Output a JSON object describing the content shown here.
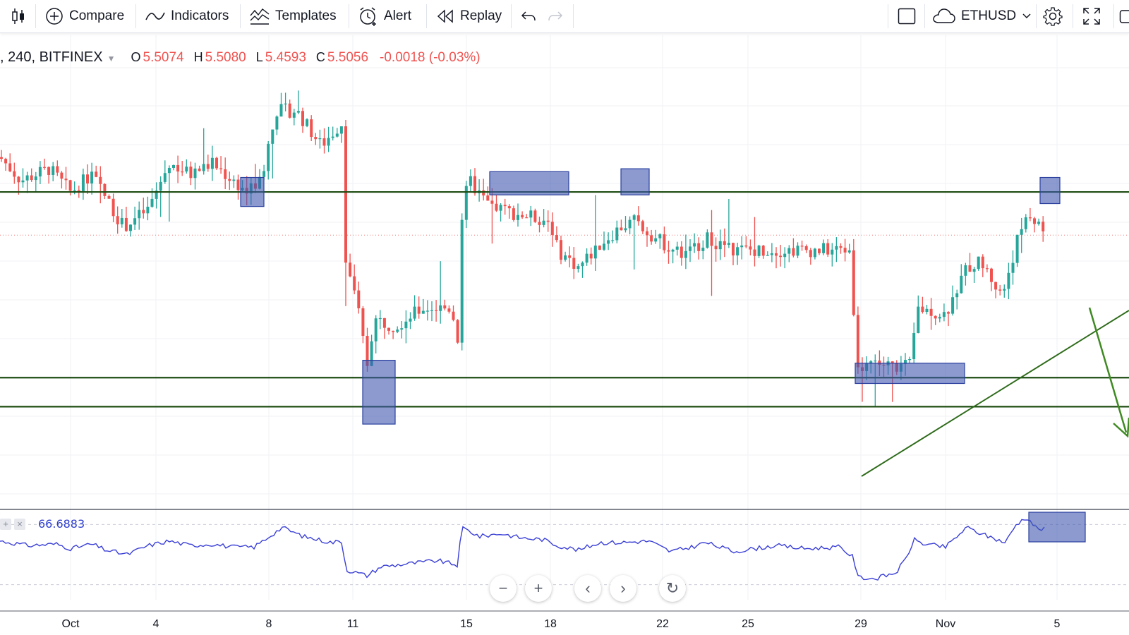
{
  "toolbar": {
    "compare": "Compare",
    "indicators": "Indicators",
    "templates": "Templates",
    "alert": "Alert",
    "replay": "Replay",
    "symbol": "ETHUSD"
  },
  "legend": {
    "symbol": ", 240, BITFINEX",
    "o_label": "O",
    "o": "5.5074",
    "h_label": "H",
    "h": "5.5080",
    "l_label": "L",
    "l": "5.4593",
    "c_label": "C",
    "c": "5.5056",
    "change": "-0.0018 (-0.03%)"
  },
  "rsi": {
    "value": "66.6883"
  },
  "colors": {
    "up": "#26a69a",
    "down": "#ef5350",
    "rsi": "#3a3fd6",
    "level": "#1e4d12",
    "box": "#3f56b0"
  },
  "chart_data": {
    "type": "candlestick",
    "symbol": "BITFINEX 240",
    "x_tick_labels": [
      "Oct",
      "4",
      "8",
      "11",
      "15",
      "18",
      "22",
      "25",
      "29",
      "Nov",
      "5"
    ],
    "y_range": [
      5.05,
      5.85
    ],
    "last_price": 5.5056,
    "horizontal_levels": [
      5.58,
      5.26,
      5.21
    ],
    "path_anchors": [
      [
        0,
        5.64
      ],
      [
        30,
        5.6
      ],
      [
        70,
        5.62
      ],
      [
        100,
        5.58
      ],
      [
        130,
        5.61
      ],
      [
        150,
        5.57
      ],
      [
        175,
        5.52
      ],
      [
        210,
        5.55
      ],
      [
        240,
        5.63
      ],
      [
        270,
        5.61
      ],
      [
        300,
        5.63
      ],
      [
        330,
        5.6
      ],
      [
        350,
        5.58
      ],
      [
        370,
        5.6
      ],
      [
        390,
        5.72
      ],
      [
        420,
        5.72
      ],
      [
        455,
        5.66
      ],
      [
        485,
        5.7
      ],
      [
        490,
        5.47
      ],
      [
        510,
        5.36
      ],
      [
        520,
        5.28
      ],
      [
        530,
        5.36
      ],
      [
        560,
        5.35
      ],
      [
        600,
        5.38
      ],
      [
        640,
        5.38
      ],
      [
        650,
        5.32
      ],
      [
        655,
        5.55
      ],
      [
        665,
        5.6
      ],
      [
        690,
        5.56
      ],
      [
        710,
        5.55
      ],
      [
        740,
        5.54
      ],
      [
        780,
        5.53
      ],
      [
        790,
        5.48
      ],
      [
        820,
        5.45
      ],
      [
        850,
        5.49
      ],
      [
        880,
        5.52
      ],
      [
        900,
        5.53
      ],
      [
        930,
        5.5
      ],
      [
        970,
        5.47
      ],
      [
        1000,
        5.5
      ],
      [
        1040,
        5.48
      ],
      [
        1070,
        5.48
      ],
      [
        1100,
        5.48
      ],
      [
        1140,
        5.48
      ],
      [
        1180,
        5.48
      ],
      [
        1205,
        5.48
      ],
      [
        1215,
        5.27
      ],
      [
        1230,
        5.29
      ],
      [
        1260,
        5.28
      ],
      [
        1290,
        5.28
      ],
      [
        1300,
        5.38
      ],
      [
        1340,
        5.37
      ],
      [
        1370,
        5.45
      ],
      [
        1390,
        5.46
      ],
      [
        1420,
        5.4
      ],
      [
        1440,
        5.49
      ],
      [
        1455,
        5.54
      ],
      [
        1470,
        5.53
      ],
      [
        1480,
        5.51
      ]
    ],
    "rsi": {
      "current": 66.6883,
      "path_anchors": [
        [
          0,
          59
        ],
        [
          40,
          56
        ],
        [
          80,
          57
        ],
        [
          100,
          54
        ],
        [
          130,
          57
        ],
        [
          150,
          53
        ],
        [
          180,
          50
        ],
        [
          210,
          56
        ],
        [
          240,
          59
        ],
        [
          270,
          56
        ],
        [
          300,
          57
        ],
        [
          330,
          55
        ],
        [
          360,
          55
        ],
        [
          400,
          68
        ],
        [
          430,
          62
        ],
        [
          470,
          58
        ],
        [
          485,
          59
        ],
        [
          490,
          40
        ],
        [
          520,
          36
        ],
        [
          540,
          42
        ],
        [
          580,
          44
        ],
        [
          620,
          46
        ],
        [
          648,
          43
        ],
        [
          655,
          68
        ],
        [
          680,
          62
        ],
        [
          710,
          64
        ],
        [
          740,
          61
        ],
        [
          770,
          60
        ],
        [
          790,
          56
        ],
        [
          820,
          53
        ],
        [
          850,
          58
        ],
        [
          880,
          58
        ],
        [
          920,
          59
        ],
        [
          950,
          52
        ],
        [
          980,
          55
        ],
        [
          1000,
          58
        ],
        [
          1040,
          52
        ],
        [
          1070,
          54
        ],
        [
          1100,
          56
        ],
        [
          1140,
          54
        ],
        [
          1190,
          55
        ],
        [
          1210,
          48
        ],
        [
          1215,
          35
        ],
        [
          1240,
          34
        ],
        [
          1270,
          38
        ],
        [
          1285,
          48
        ],
        [
          1295,
          60
        ],
        [
          1310,
          57
        ],
        [
          1340,
          55
        ],
        [
          1370,
          68
        ],
        [
          1395,
          63
        ],
        [
          1425,
          58
        ],
        [
          1440,
          70
        ],
        [
          1455,
          75
        ],
        [
          1470,
          67
        ],
        [
          1480,
          67
        ]
      ]
    }
  }
}
